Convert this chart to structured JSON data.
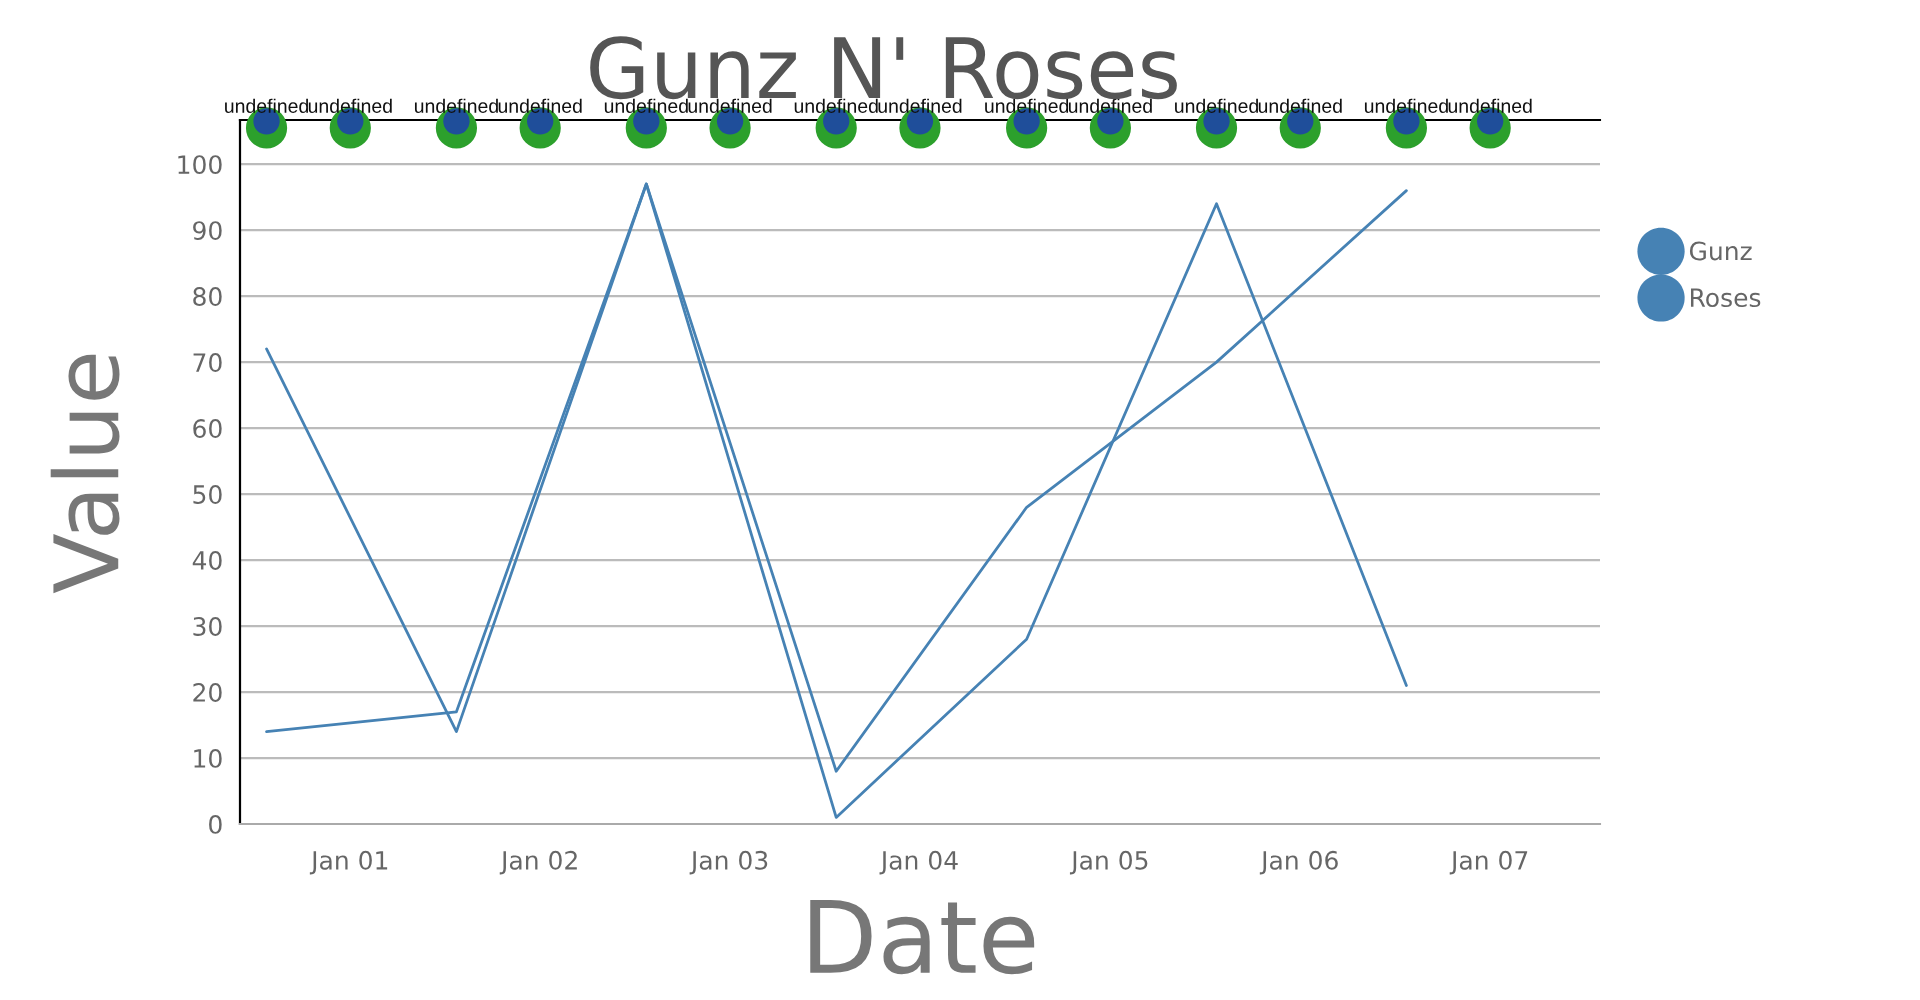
{
  "chart_data": {
    "type": "line",
    "title": "Gunz N' Roses",
    "xlabel": "Date",
    "ylabel": "Value",
    "xlim": [
      "2000-06-03",
      "2007-07-31"
    ],
    "xticks": [
      {
        "value": "2001-01-01",
        "label": "Jan 01"
      },
      {
        "value": "2002-01-01",
        "label": "Jan 02"
      },
      {
        "value": "2003-01-01",
        "label": "Jan 03"
      },
      {
        "value": "2004-01-01",
        "label": "Jan 04"
      },
      {
        "value": "2005-01-01",
        "label": "Jan 05"
      },
      {
        "value": "2006-01-01",
        "label": "Jan 06"
      },
      {
        "value": "2007-01-01",
        "label": "Jan 07"
      }
    ],
    "ylim": [
      0,
      106.7
    ],
    "yticks": [
      0,
      10,
      20,
      30,
      40,
      50,
      60,
      70,
      80,
      90,
      100
    ],
    "grid": "y",
    "legend": "top right",
    "series": [
      {
        "name": "Gunz",
        "color": "#4682b4",
        "x": [
          "2000-07-24",
          "2001-07-24",
          "2002-07-24",
          "2003-07-24",
          "2004-07-24",
          "2005-07-24",
          "2006-07-24"
        ],
        "values": [
          72,
          14,
          97,
          1,
          28,
          94,
          21
        ]
      },
      {
        "name": "Roses",
        "color": "#4682b4",
        "x": [
          "2000-07-24",
          "2001-07-24",
          "2002-07-24",
          "2003-07-24",
          "2004-07-24",
          "2005-07-24",
          "2006-07-24"
        ],
        "values": [
          14,
          17,
          97,
          8,
          48,
          70,
          96
        ]
      },
      {
        "type": "scatter",
        "color": "#2ca02c",
        "x": [
          "2000-07-24",
          "2001-01-01",
          "2001-07-24",
          "2002-01-01",
          "2002-07-24",
          "2003-01-01",
          "2003-07-24",
          "2004-01-01",
          "2004-07-24",
          "2005-01-01",
          "2005-07-24",
          "2006-01-01",
          "2006-07-24",
          "2007-01-01"
        ],
        "values": [
          105.5,
          105.5,
          105.5,
          105.5,
          105.5,
          105.5,
          105.5,
          105.5,
          105.5,
          105.5,
          105.5,
          105.5,
          105.5,
          105.5
        ],
        "value_labels": [
          "undefined",
          "undefined",
          "undefined",
          "undefined",
          "undefined",
          "undefined",
          "undefined",
          "undefined",
          "undefined",
          "undefined",
          "undefined",
          "undefined",
          "undefined",
          "undefined"
        ]
      },
      {
        "type": "scatter",
        "color": "#1f4e9a",
        "x": [
          "2000-07-24",
          "2001-01-01",
          "2001-07-24",
          "2002-01-01",
          "2002-07-24",
          "2003-01-01",
          "2003-07-24",
          "2004-01-01",
          "2004-07-24",
          "2005-01-01",
          "2005-07-24",
          "2006-01-01",
          "2006-07-24",
          "2007-01-01"
        ],
        "values": [
          106.5,
          106.5,
          106.5,
          106.5,
          106.5,
          106.5,
          106.5,
          106.5,
          106.5,
          106.5,
          106.5,
          106.5,
          106.5,
          106.5
        ]
      }
    ]
  }
}
